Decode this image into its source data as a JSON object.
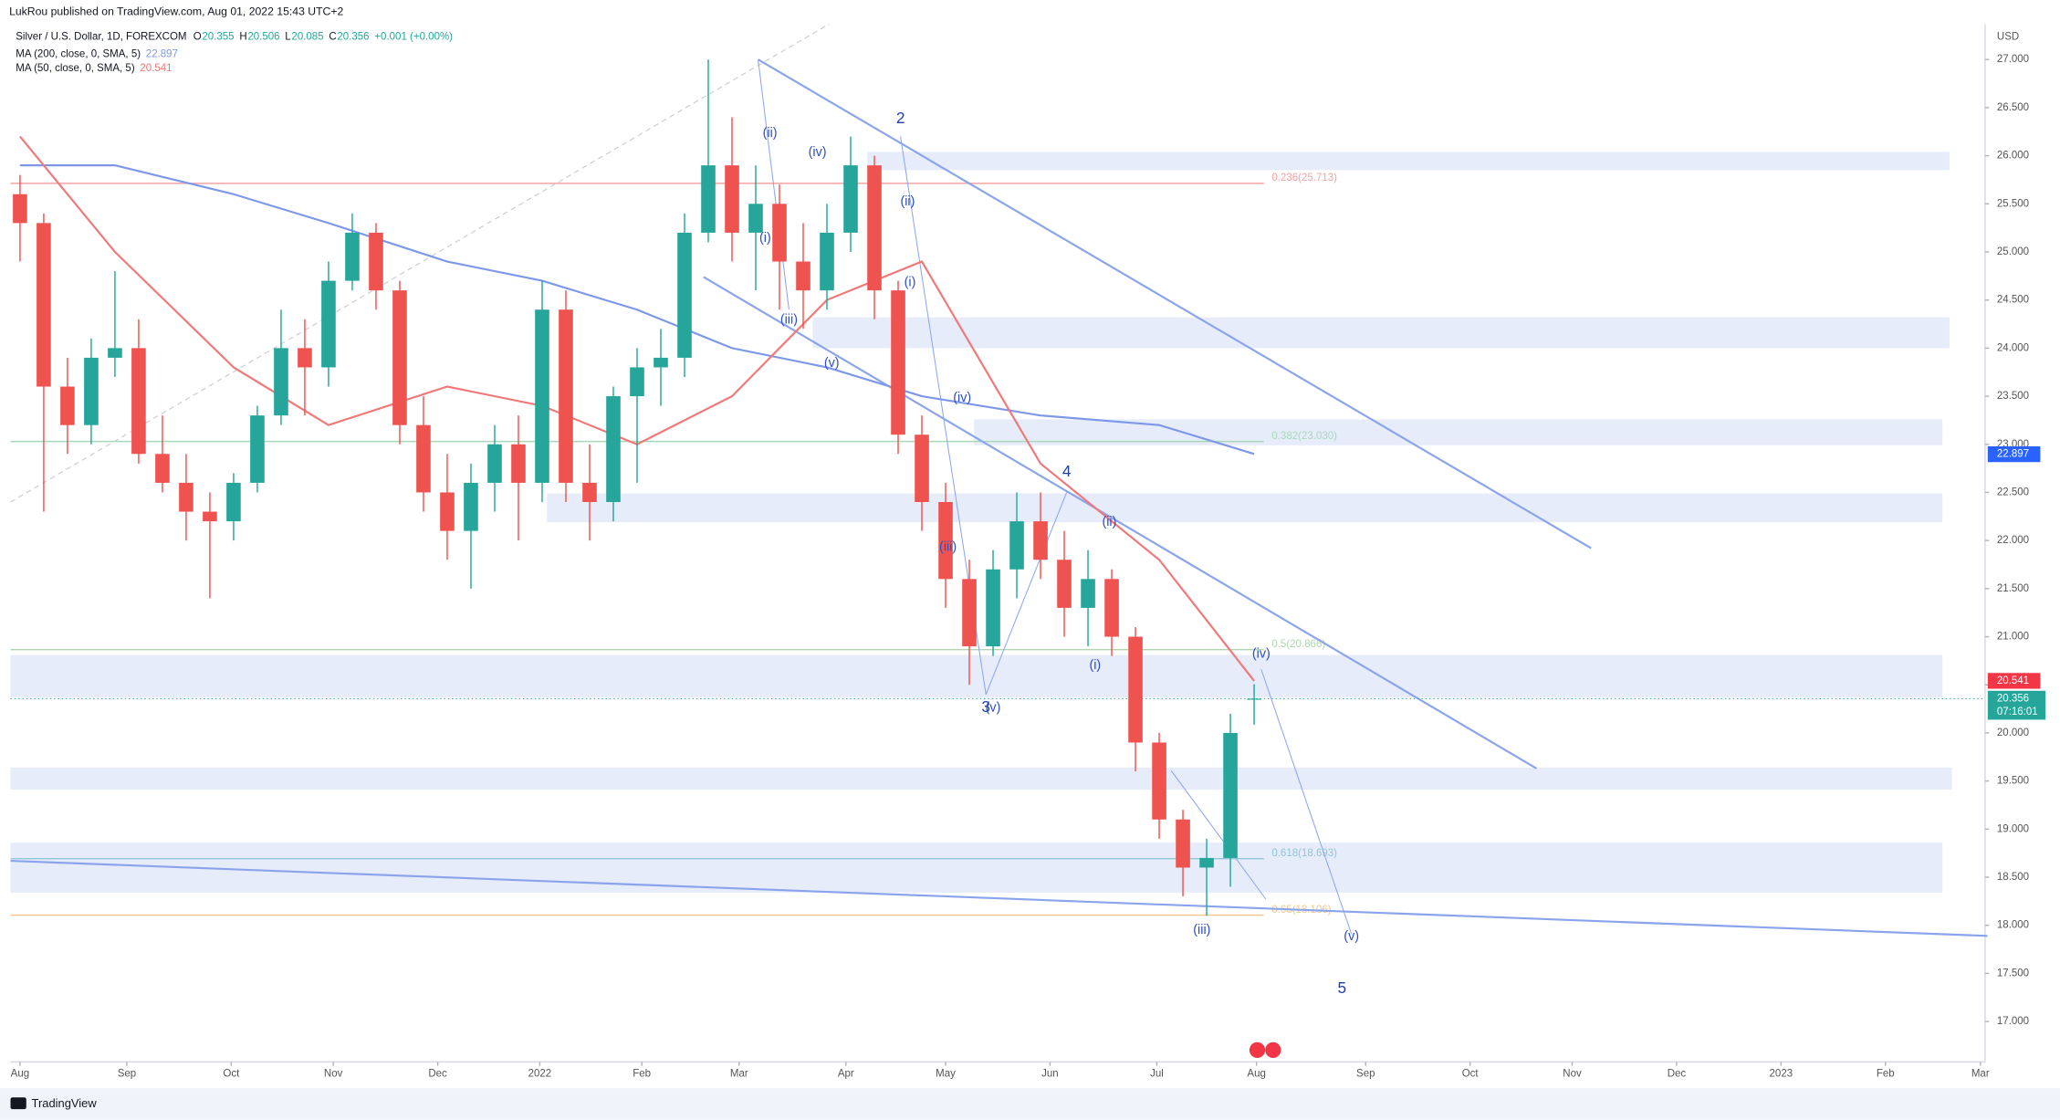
{
  "chart_data": {
    "type": "candlestick",
    "publisher": "LukRou published on TradingView.com, Aug 01, 2022 15:43 UTC+2",
    "title": "Silver / U.S. Dollar, 1D, FOREXCOM",
    "ohlc_legend": [
      {
        "label": "O",
        "value": 20.355
      },
      {
        "label": "H",
        "value": 20.506
      },
      {
        "label": "L",
        "value": 20.085
      },
      {
        "label": "C",
        "value": 20.356
      }
    ],
    "change": "+0.001 (+0.00%)",
    "currency": "USD",
    "brand": "TradingView",
    "up_color": "#26a69a",
    "down_color": "#ef5350",
    "x": [
      0,
      1,
      2,
      3,
      4,
      5,
      6,
      7,
      8,
      9,
      10,
      11,
      12,
      13,
      14,
      15,
      16,
      17,
      18,
      19,
      20,
      21,
      22,
      23,
      24,
      25,
      26,
      27,
      28,
      29,
      30,
      31,
      32,
      33,
      34,
      35,
      36,
      37,
      38,
      39,
      40,
      41,
      42,
      43,
      44,
      45,
      46,
      47,
      48,
      49,
      50,
      51,
      52
    ],
    "open": [
      25.6,
      25.3,
      23.6,
      23.2,
      23.9,
      24.0,
      22.9,
      22.6,
      22.3,
      22.2,
      22.6,
      23.3,
      24.0,
      23.8,
      24.7,
      25.2,
      24.6,
      23.2,
      22.5,
      22.1,
      22.6,
      23.0,
      22.6,
      24.4,
      22.6,
      22.4,
      23.5,
      23.8,
      23.9,
      25.2,
      25.9,
      25.2,
      25.5,
      24.9,
      24.6,
      25.2,
      25.9,
      24.6,
      23.1,
      22.4,
      21.6,
      20.9,
      21.7,
      22.2,
      21.8,
      21.3,
      21.6,
      21.0,
      19.9,
      19.1,
      18.6,
      18.7,
      20.355
    ],
    "high": [
      25.8,
      25.4,
      23.9,
      24.1,
      24.8,
      24.3,
      23.3,
      22.9,
      22.5,
      22.7,
      23.4,
      24.4,
      24.3,
      24.9,
      25.4,
      25.3,
      24.7,
      23.5,
      22.9,
      22.8,
      23.2,
      23.3,
      24.7,
      24.6,
      23.0,
      23.6,
      24.0,
      24.2,
      25.4,
      27.0,
      26.4,
      25.9,
      25.7,
      25.3,
      25.5,
      26.2,
      26.0,
      24.7,
      23.3,
      22.6,
      21.8,
      21.9,
      22.5,
      22.5,
      22.1,
      21.9,
      21.7,
      21.1,
      20.0,
      19.2,
      18.9,
      20.2,
      20.506
    ],
    "low": [
      24.9,
      22.3,
      22.9,
      23.0,
      23.7,
      22.8,
      22.5,
      22.0,
      21.4,
      22.0,
      22.5,
      23.2,
      23.3,
      23.6,
      24.6,
      24.4,
      23.0,
      22.3,
      21.8,
      21.5,
      22.3,
      22.0,
      22.4,
      22.4,
      22.0,
      22.2,
      22.6,
      23.4,
      23.7,
      25.1,
      24.9,
      24.6,
      24.4,
      24.2,
      24.4,
      25.0,
      24.3,
      22.9,
      22.1,
      21.3,
      20.5,
      20.8,
      21.4,
      21.6,
      21.0,
      20.9,
      20.8,
      19.6,
      18.9,
      18.3,
      18.1,
      18.4,
      20.085
    ],
    "close": [
      25.3,
      23.6,
      23.2,
      23.9,
      24.0,
      22.9,
      22.6,
      22.3,
      22.2,
      22.6,
      23.3,
      24.0,
      23.8,
      24.7,
      25.2,
      24.6,
      23.2,
      22.5,
      22.1,
      22.6,
      23.0,
      22.6,
      24.4,
      22.6,
      22.4,
      23.5,
      23.8,
      23.9,
      25.2,
      25.9,
      25.2,
      25.5,
      24.9,
      24.6,
      25.2,
      25.9,
      24.6,
      23.1,
      22.4,
      21.6,
      20.9,
      21.7,
      22.2,
      21.8,
      21.3,
      21.6,
      21.0,
      19.9,
      19.1,
      18.6,
      18.7,
      20.0,
      20.356
    ],
    "xlim": [
      -0.4,
      82.8
    ],
    "xticks": [
      {
        "value": 0,
        "label": "Aug"
      },
      {
        "value": 4.5,
        "label": "Sep"
      },
      {
        "value": 8.9,
        "label": "Oct"
      },
      {
        "value": 13.2,
        "label": "Nov"
      },
      {
        "value": 17.6,
        "label": "Dec"
      },
      {
        "value": 21.9,
        "label": "2022"
      },
      {
        "value": 26.2,
        "label": "Feb"
      },
      {
        "value": 30.3,
        "label": "Mar"
      },
      {
        "value": 34.8,
        "label": "Apr"
      },
      {
        "value": 39.0,
        "label": "May"
      },
      {
        "value": 43.4,
        "label": "Jun"
      },
      {
        "value": 47.9,
        "label": "Jul"
      },
      {
        "value": 52.1,
        "label": "Aug"
      },
      {
        "value": 56.7,
        "label": "Sep"
      },
      {
        "value": 61.1,
        "label": "Oct"
      },
      {
        "value": 65.4,
        "label": "Nov"
      },
      {
        "value": 69.8,
        "label": "Dec"
      },
      {
        "value": 74.2,
        "label": "2023"
      },
      {
        "value": 78.6,
        "label": "Feb"
      },
      {
        "value": 82.6,
        "label": "Mar"
      }
    ],
    "ylim": [
      16.58,
      27.37
    ],
    "yticks": [
      {
        "value": 17,
        "label": "17.000"
      },
      {
        "value": 17.5,
        "label": "17.500"
      },
      {
        "value": 18,
        "label": "18.000"
      },
      {
        "value": 18.5,
        "label": "18.500"
      },
      {
        "value": 19,
        "label": "19.000"
      },
      {
        "value": 19.5,
        "label": "19.500"
      },
      {
        "value": 20,
        "label": "20.000"
      },
      {
        "value": 20.5,
        "label": "20.500"
      },
      {
        "value": 21,
        "label": "21.000"
      },
      {
        "value": 21.5,
        "label": "21.500"
      },
      {
        "value": 22,
        "label": "22.000"
      },
      {
        "value": 22.5,
        "label": "22.500"
      },
      {
        "value": 23,
        "label": "23.000"
      },
      {
        "value": 23.5,
        "label": "23.500"
      },
      {
        "value": 24,
        "label": "24.000"
      },
      {
        "value": 24.5,
        "label": "24.500"
      },
      {
        "value": 25,
        "label": "25.000"
      },
      {
        "value": 25.5,
        "label": "25.500"
      },
      {
        "value": 26,
        "label": "26.000"
      },
      {
        "value": 26.5,
        "label": "26.500"
      },
      {
        "value": 27,
        "label": "27.000"
      }
    ],
    "indicators": [
      {
        "name": "MA (200, close, 0, SMA, 5)",
        "color": "#7d98e8",
        "last": 22.897,
        "x": [
          0,
          4,
          9,
          13,
          18,
          22,
          26,
          30,
          34,
          38,
          43,
          48,
          52
        ],
        "values": [
          25.9,
          25.9,
          25.6,
          25.3,
          24.9,
          24.7,
          24.4,
          24.0,
          23.8,
          23.5,
          23.3,
          23.2,
          22.9
        ]
      },
      {
        "name": "MA (50, close, 0, SMA, 5)",
        "color": "#f07878",
        "last": 20.541,
        "x": [
          0,
          4,
          9,
          13,
          18,
          22,
          26,
          30,
          34,
          38,
          43,
          48,
          52
        ],
        "values": [
          26.2,
          25.0,
          23.8,
          23.2,
          23.6,
          23.4,
          23.0,
          23.5,
          24.5,
          24.9,
          22.8,
          21.8,
          20.541
        ]
      }
    ],
    "price_label": {
      "value": 20.356,
      "countdown": "07:16:01",
      "color": "#26a69a"
    },
    "zones": [
      {
        "x": [
          35.7,
          81.3
        ],
        "y": [
          25.85,
          26.04
        ]
      },
      {
        "x": [
          33.4,
          81.3
        ],
        "y": [
          24.0,
          24.32
        ]
      },
      {
        "x": [
          40.2,
          81.0
        ],
        "y": [
          22.99,
          23.26
        ]
      },
      {
        "x": [
          22.2,
          81.0
        ],
        "y": [
          22.19,
          22.49
        ]
      },
      {
        "x": [
          -0.4,
          81.0
        ],
        "y": [
          20.37,
          20.81
        ]
      },
      {
        "x": [
          -0.4,
          81.4
        ],
        "y": [
          19.41,
          19.64
        ]
      },
      {
        "x": [
          -0.4,
          81.0
        ],
        "y": [
          18.34,
          18.86
        ]
      }
    ],
    "trendlines": [
      {
        "x": [
          31.1,
          66.2
        ],
        "y": [
          27.0,
          21.92
        ],
        "width": 1.5,
        "dash": false
      },
      {
        "x": [
          28.8,
          63.9
        ],
        "y": [
          24.74,
          19.63
        ],
        "width": 1.5,
        "dash": false
      },
      {
        "x": [
          -0.4,
          82.9
        ],
        "y": [
          18.67,
          17.89
        ],
        "width": 1.5,
        "dash": false
      },
      {
        "x": [
          -0.4,
          34.1
        ],
        "y": [
          22.4,
          27.37
        ],
        "width": 0.8,
        "dash": true
      },
      {
        "x": [
          52.3,
          56.1
        ],
        "y": [
          20.66,
          17.91
        ],
        "width": 0.7,
        "dash": false
      },
      {
        "x": [
          48.5,
          52.5
        ],
        "y": [
          19.61,
          18.27
        ],
        "width": 0.7,
        "dash": false
      },
      {
        "x": [
          31.1,
          32.4
        ],
        "y": [
          27.0,
          24.4
        ],
        "width": 0.7,
        "dash": false
      },
      {
        "x": [
          37.1,
          40.7
        ],
        "y": [
          26.2,
          20.4
        ],
        "width": 0.7,
        "dash": false
      },
      {
        "x": [
          40.7,
          44.1
        ],
        "y": [
          20.4,
          22.5
        ],
        "width": 0.7,
        "dash": false
      }
    ],
    "fib_levels": [
      {
        "label": "0.236(25.713)",
        "value": 25.713,
        "color": "#f4a3a3"
      },
      {
        "label": "0.382(23.030)",
        "value": 23.03,
        "color": "#a8d8b9"
      },
      {
        "label": "0.5(20.866)",
        "value": 20.866,
        "color": "#b0d6b0"
      },
      {
        "label": "0.618(18.693)",
        "value": 18.693,
        "color": "#8fc6d6"
      },
      {
        "label": "0.65(18.106)",
        "value": 18.106,
        "color": "#f5c58a"
      }
    ],
    "wave_labels": [
      {
        "text": "(ii)",
        "x": 31.6,
        "y": 26.23,
        "major": false
      },
      {
        "text": "(i)",
        "x": 31.4,
        "y": 25.14,
        "major": false
      },
      {
        "text": "(iv)",
        "x": 33.6,
        "y": 26.03,
        "major": false
      },
      {
        "text": "(iii)",
        "x": 32.4,
        "y": 24.29,
        "major": false
      },
      {
        "text": "(v)",
        "x": 34.2,
        "y": 23.84,
        "major": false
      },
      {
        "text": "2",
        "x": 37.1,
        "y": 26.38,
        "major": true
      },
      {
        "text": "(ii)",
        "x": 37.4,
        "y": 25.52,
        "major": false
      },
      {
        "text": "(i)",
        "x": 37.5,
        "y": 24.68,
        "major": false
      },
      {
        "text": "(iv)",
        "x": 39.7,
        "y": 23.48,
        "major": false
      },
      {
        "text": "(iii)",
        "x": 39.1,
        "y": 21.93,
        "major": false
      },
      {
        "text": "3",
        "x": 40.7,
        "y": 20.26,
        "major": true
      },
      {
        "text": "(v)",
        "x": 41.0,
        "y": 20.26,
        "major": false
      },
      {
        "text": "4",
        "x": 44.1,
        "y": 22.71,
        "major": true
      },
      {
        "text": "(ii)",
        "x": 45.9,
        "y": 22.19,
        "major": false
      },
      {
        "text": "(i)",
        "x": 45.3,
        "y": 20.7,
        "major": false
      },
      {
        "text": "(iv)",
        "x": 52.3,
        "y": 20.82,
        "major": false
      },
      {
        "text": "(iii)",
        "x": 49.8,
        "y": 17.95,
        "major": false
      },
      {
        "text": "(v)",
        "x": 56.1,
        "y": 17.88,
        "major": false
      },
      {
        "text": "5",
        "x": 55.7,
        "y": 17.34,
        "major": true
      }
    ]
  }
}
